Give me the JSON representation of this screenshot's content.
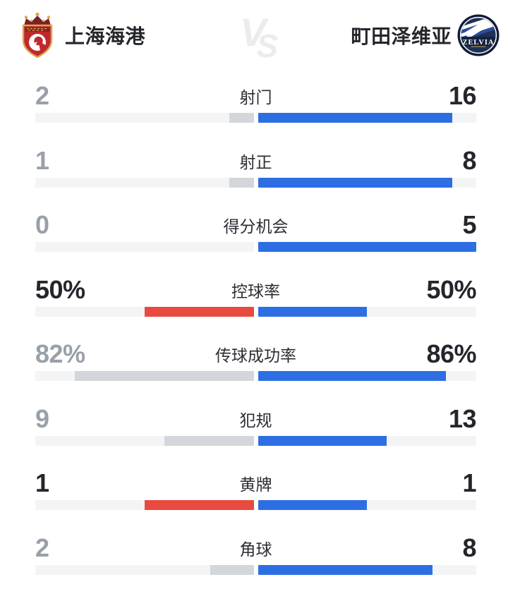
{
  "header": {
    "home_team": {
      "name": "上海海港"
    },
    "away_team": {
      "name": "町田泽维亚",
      "crest_text": "ZELVIA"
    },
    "vs_v": "V",
    "vs_s": "S"
  },
  "colors": {
    "away_bar": "#2e6ee3",
    "home_bar_lead": "#e84a3f",
    "home_bar_trail": "#d3d6da",
    "track": "#f3f4f5",
    "value_strong": "#24262c",
    "value_muted": "#9aa0a9"
  },
  "stats": [
    {
      "label": "射门",
      "home_value": "2",
      "away_value": "16",
      "home_pct": 11.1,
      "away_pct": 88.9,
      "home_bar": "gray",
      "home_muted": true,
      "away_muted": false
    },
    {
      "label": "射正",
      "home_value": "1",
      "away_value": "8",
      "home_pct": 11.1,
      "away_pct": 88.9,
      "home_bar": "gray",
      "home_muted": true,
      "away_muted": false
    },
    {
      "label": "得分机会",
      "home_value": "0",
      "away_value": "5",
      "home_pct": 0,
      "away_pct": 100,
      "home_bar": "gray",
      "home_muted": true,
      "away_muted": false
    },
    {
      "label": "控球率",
      "home_value": "50%",
      "away_value": "50%",
      "home_pct": 50,
      "away_pct": 50,
      "home_bar": "red",
      "home_muted": false,
      "away_muted": false
    },
    {
      "label": "传球成功率",
      "home_value": "82%",
      "away_value": "86%",
      "home_pct": 82,
      "away_pct": 86,
      "home_bar": "gray",
      "home_muted": true,
      "away_muted": false
    },
    {
      "label": "犯规",
      "home_value": "9",
      "away_value": "13",
      "home_pct": 40.9,
      "away_pct": 59.1,
      "home_bar": "gray",
      "home_muted": true,
      "away_muted": false
    },
    {
      "label": "黄牌",
      "home_value": "1",
      "away_value": "1",
      "home_pct": 50,
      "away_pct": 50,
      "home_bar": "red",
      "home_muted": false,
      "away_muted": false
    },
    {
      "label": "角球",
      "home_value": "2",
      "away_value": "8",
      "home_pct": 20,
      "away_pct": 80,
      "home_bar": "gray",
      "home_muted": true,
      "away_muted": false
    }
  ]
}
